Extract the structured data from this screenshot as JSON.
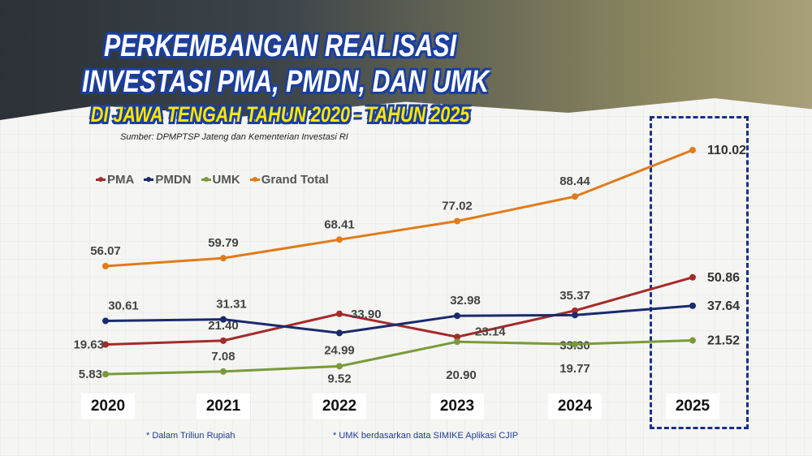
{
  "title": {
    "line1": "PERKEMBANGAN REALISASI",
    "line2": "INVESTASI PMA, PMDN, DAN UMK",
    "line3": "DI JAWA TENGAH TAHUN 2020 - TAHUN 2025"
  },
  "source": "Sumber: DPMPTSP Jateng dan Kementerian Investasi RI",
  "notes": [
    "* Dalam Triliun Rupiah",
    "* UMK berdasarkan data SIMIKE Aplikasi CJIP"
  ],
  "chart_data": {
    "type": "line",
    "title": "PERKEMBANGAN REALISASI INVESTASI PMA, PMDN, DAN UMK DI JAWA TENGAH TAHUN 2020 - TAHUN 2025",
    "categories": [
      "2020",
      "2021",
      "2022",
      "2023",
      "2024",
      "2025"
    ],
    "unit": "Triliun Rupiah",
    "grid": false,
    "legend_position": "top-left",
    "highlight_category": "2025",
    "series": [
      {
        "name": "PMA",
        "color": "#a52a2a",
        "values": [
          19.63,
          21.4,
          33.9,
          23.14,
          35.37,
          50.86
        ]
      },
      {
        "name": "PMDN",
        "color": "#1a2a6c",
        "values": [
          30.61,
          31.31,
          24.99,
          32.98,
          33.3,
          37.64
        ]
      },
      {
        "name": "UMK",
        "color": "#7a9a3a",
        "values": [
          5.83,
          7.08,
          9.52,
          20.9,
          19.77,
          21.52
        ]
      },
      {
        "name": "Grand Total",
        "color": "#e07b1a",
        "values": [
          56.07,
          59.79,
          68.41,
          77.02,
          88.44,
          110.02
        ]
      }
    ]
  }
}
